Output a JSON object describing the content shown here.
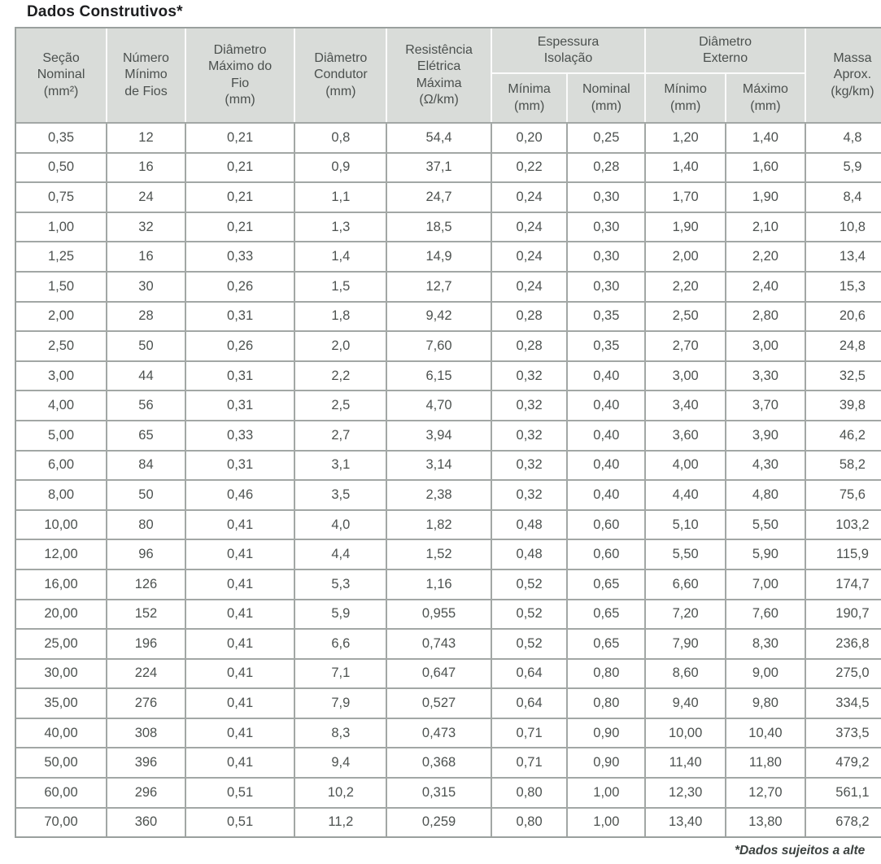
{
  "title": "Dados Construtivos*",
  "footer": {
    "note": "*Dados sujeitos a alte"
  },
  "table": {
    "headers": {
      "secao_nominal": "Seção\nNominal\n(mm²)",
      "numero_minimo_fios": "Número\nMínimo\nde Fios",
      "diametro_maximo_fio": "Diâmetro\nMáximo do\nFio\n(mm)",
      "diametro_condutor": "Diâmetro\nCondutor\n(mm)",
      "resistencia_eletrica": "Resistência\nElétrica\nMáxima\n(Ω/km)",
      "espessura_isolacao": "Espessura\nIsolação",
      "diametro_externo": "Diâmetro\nExterno",
      "isolacao_minima": "Mínima\n(mm)",
      "isolacao_nominal": "Nominal\n(mm)",
      "externo_minimo": "Mínimo\n(mm)",
      "externo_maximo": "Máximo\n(mm)",
      "massa_aprox": "Massa\nAprox.\n(kg/km)"
    },
    "column_keys": [
      "secao_nominal_mm2",
      "numero_minimo_fios",
      "diametro_maximo_fio_mm",
      "diametro_condutor_mm",
      "resistencia_eletrica_ohm_km",
      "isolacao_minima_mm",
      "isolacao_nominal_mm",
      "externo_minimo_mm",
      "externo_maximo_mm",
      "massa_aprox_kg_km"
    ],
    "rows": [
      [
        "0,35",
        "12",
        "0,21",
        "0,8",
        "54,4",
        "0,20",
        "0,25",
        "1,20",
        "1,40",
        "4,8"
      ],
      [
        "0,50",
        "16",
        "0,21",
        "0,9",
        "37,1",
        "0,22",
        "0,28",
        "1,40",
        "1,60",
        "5,9"
      ],
      [
        "0,75",
        "24",
        "0,21",
        "1,1",
        "24,7",
        "0,24",
        "0,30",
        "1,70",
        "1,90",
        "8,4"
      ],
      [
        "1,00",
        "32",
        "0,21",
        "1,3",
        "18,5",
        "0,24",
        "0,30",
        "1,90",
        "2,10",
        "10,8"
      ],
      [
        "1,25",
        "16",
        "0,33",
        "1,4",
        "14,9",
        "0,24",
        "0,30",
        "2,00",
        "2,20",
        "13,4"
      ],
      [
        "1,50",
        "30",
        "0,26",
        "1,5",
        "12,7",
        "0,24",
        "0,30",
        "2,20",
        "2,40",
        "15,3"
      ],
      [
        "2,00",
        "28",
        "0,31",
        "1,8",
        "9,42",
        "0,28",
        "0,35",
        "2,50",
        "2,80",
        "20,6"
      ],
      [
        "2,50",
        "50",
        "0,26",
        "2,0",
        "7,60",
        "0,28",
        "0,35",
        "2,70",
        "3,00",
        "24,8"
      ],
      [
        "3,00",
        "44",
        "0,31",
        "2,2",
        "6,15",
        "0,32",
        "0,40",
        "3,00",
        "3,30",
        "32,5"
      ],
      [
        "4,00",
        "56",
        "0,31",
        "2,5",
        "4,70",
        "0,32",
        "0,40",
        "3,40",
        "3,70",
        "39,8"
      ],
      [
        "5,00",
        "65",
        "0,33",
        "2,7",
        "3,94",
        "0,32",
        "0,40",
        "3,60",
        "3,90",
        "46,2"
      ],
      [
        "6,00",
        "84",
        "0,31",
        "3,1",
        "3,14",
        "0,32",
        "0,40",
        "4,00",
        "4,30",
        "58,2"
      ],
      [
        "8,00",
        "50",
        "0,46",
        "3,5",
        "2,38",
        "0,32",
        "0,40",
        "4,40",
        "4,80",
        "75,6"
      ],
      [
        "10,00",
        "80",
        "0,41",
        "4,0",
        "1,82",
        "0,48",
        "0,60",
        "5,10",
        "5,50",
        "103,2"
      ],
      [
        "12,00",
        "96",
        "0,41",
        "4,4",
        "1,52",
        "0,48",
        "0,60",
        "5,50",
        "5,90",
        "115,9"
      ],
      [
        "16,00",
        "126",
        "0,41",
        "5,3",
        "1,16",
        "0,52",
        "0,65",
        "6,60",
        "7,00",
        "174,7"
      ],
      [
        "20,00",
        "152",
        "0,41",
        "5,9",
        "0,955",
        "0,52",
        "0,65",
        "7,20",
        "7,60",
        "190,7"
      ],
      [
        "25,00",
        "196",
        "0,41",
        "6,6",
        "0,743",
        "0,52",
        "0,65",
        "7,90",
        "8,30",
        "236,8"
      ],
      [
        "30,00",
        "224",
        "0,41",
        "7,1",
        "0,647",
        "0,64",
        "0,80",
        "8,60",
        "9,00",
        "275,0"
      ],
      [
        "35,00",
        "276",
        "0,41",
        "7,9",
        "0,527",
        "0,64",
        "0,80",
        "9,40",
        "9,80",
        "334,5"
      ],
      [
        "40,00",
        "308",
        "0,41",
        "8,3",
        "0,473",
        "0,71",
        "0,90",
        "10,00",
        "10,40",
        "373,5"
      ],
      [
        "50,00",
        "396",
        "0,41",
        "9,4",
        "0,368",
        "0,71",
        "0,90",
        "11,40",
        "11,80",
        "479,2"
      ],
      [
        "60,00",
        "296",
        "0,51",
        "10,2",
        "0,315",
        "0,80",
        "1,00",
        "12,30",
        "12,70",
        "561,1"
      ],
      [
        "70,00",
        "360",
        "0,51",
        "11,2",
        "0,259",
        "0,80",
        "1,00",
        "13,40",
        "13,80",
        "678,2"
      ]
    ],
    "colors": {
      "header_background": "#d9dcd9",
      "header_text": "#4b504e",
      "body_text": "#4d5250",
      "grid_border": "#a2a7a5",
      "outer_border": "#9aa09e",
      "header_separator": "#fbfbfb"
    }
  }
}
